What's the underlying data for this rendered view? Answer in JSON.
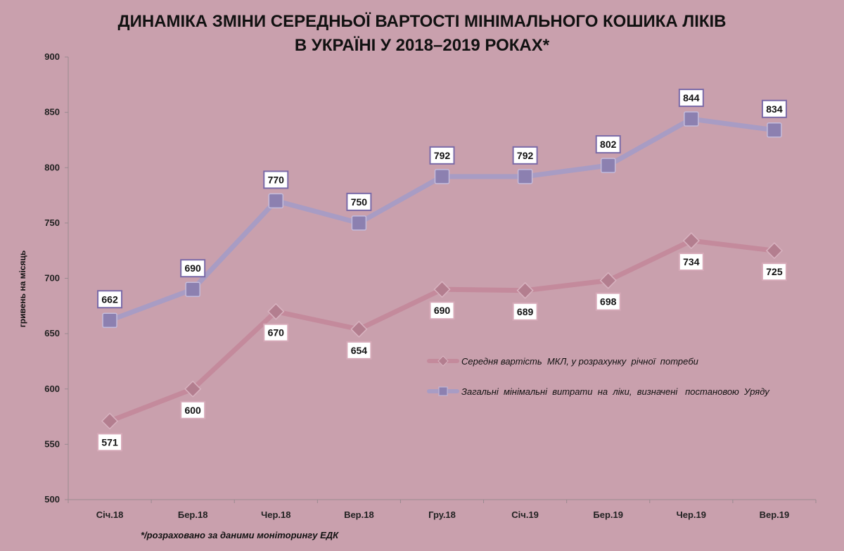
{
  "chart_data": {
    "type": "line",
    "title_lines": [
      "ДИНАМІКА ЗМІНИ СЕРЕДНЬОЇ ВАРТОСТІ МІНІМАЛЬНОГО  КОШИКА ЛІКІВ",
      "В УКРАЇНІ У 2018–2019   РОКАХ*"
    ],
    "ylabel": "гривень на місяць",
    "xlabel": "",
    "ylim": [
      500,
      900
    ],
    "yticks": [
      500,
      550,
      600,
      650,
      700,
      750,
      800,
      850,
      900
    ],
    "categories": [
      "Січ.18",
      "Бер.18",
      "Чер.18",
      "Вер.18",
      "Гру.18",
      "Січ.19",
      "Бер.19",
      "Чер.19",
      "Вер.19"
    ],
    "series": [
      {
        "name": "Середня вартість  МКЛ, у розрахунку  річної  потреби",
        "marker": "diamond",
        "color": "#c48a9c",
        "label_position": "below",
        "values": [
          571,
          600,
          670,
          654,
          690,
          689,
          698,
          734,
          725
        ]
      },
      {
        "name": "Загальні  мінімальні  витрати  на  ліки,  визначені   постановою  Уряду",
        "marker": "square",
        "color": "#a89cc4",
        "label_position": "above",
        "values": [
          662,
          690,
          770,
          750,
          792,
          792,
          802,
          844,
          834
        ]
      }
    ],
    "legend_position": "right",
    "grid": false,
    "footnote": "*/розраховано за даними моніторингу  ЕДК"
  }
}
